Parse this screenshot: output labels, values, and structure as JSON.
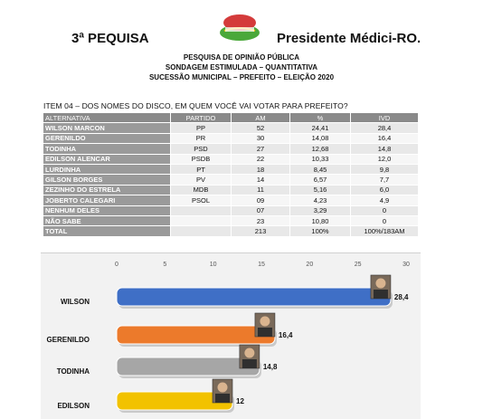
{
  "header": {
    "left_title": "3ª PEQUISA",
    "right_title": "Presidente Médici-RO.",
    "lines": [
      "PESQUISA DE OPINIÃO PÚBLICA",
      "SONDAGEM ESTIMULADA – QUANTITATIVA",
      "SUCESSÃO MUNICIPAL – PREFEITO – ELEIÇÃO 2020"
    ],
    "item_question": "ITEM 04 – DOS NOMES DO DISCO, EM QUEM VOCÊ VAI VOTAR PARA PREFEITO?"
  },
  "colors": {
    "header_bg": "#8a8a8a",
    "name_bg": "#9a9a9a",
    "cell_bg": "#e8e8e8"
  },
  "table": {
    "columns": [
      "ALTERNATIVA",
      "PARTIDO",
      "AM",
      "%",
      "IVD"
    ],
    "rows": [
      [
        "WILSON MARCON",
        "PP",
        "52",
        "24,41",
        "28,4"
      ],
      [
        "GERENILDO",
        "PR",
        "30",
        "14,08",
        "16,4"
      ],
      [
        "TODINHA",
        "PSD",
        "27",
        "12,68",
        "14,8"
      ],
      [
        "EDILSON ALENCAR",
        "PSDB",
        "22",
        "10,33",
        "12,0"
      ],
      [
        "LURDINHA",
        "PT",
        "18",
        "8,45",
        "9,8"
      ],
      [
        "GILSON BORGES",
        "PV",
        "14",
        "6,57",
        "7,7"
      ],
      [
        "ZEZINHO DO ESTRELA",
        "MDB",
        "11",
        "5,16",
        "6,0"
      ],
      [
        "JOBERTO CALEGARI",
        "PSOL",
        "09",
        "4,23",
        "4,9"
      ],
      [
        "NENHUM DELES",
        "",
        "07",
        "3,29",
        "0"
      ],
      [
        "NÃO SABE",
        "",
        "23",
        "10,80",
        "0"
      ],
      [
        "TOTAL",
        "",
        "213",
        "100%",
        "100%/183AM"
      ]
    ]
  },
  "chart_data": {
    "type": "bar",
    "orientation": "horizontal",
    "categories": [
      "WILSON",
      "GERENILDO",
      "TODINHA",
      "EDILSON"
    ],
    "values": [
      28.4,
      16.4,
      14.8,
      12
    ],
    "value_labels": [
      "28,4",
      "16,4",
      "14,8",
      "12"
    ],
    "bar_colors": [
      "#3f6fc6",
      "#ec7a2b",
      "#a6a6a6",
      "#f2c200"
    ],
    "xticks": [
      "0",
      "5",
      "10",
      "15",
      "20",
      "25",
      "30"
    ],
    "xlim": [
      0,
      30
    ],
    "grid": false,
    "title": "",
    "xlabel": "",
    "ylabel": ""
  }
}
